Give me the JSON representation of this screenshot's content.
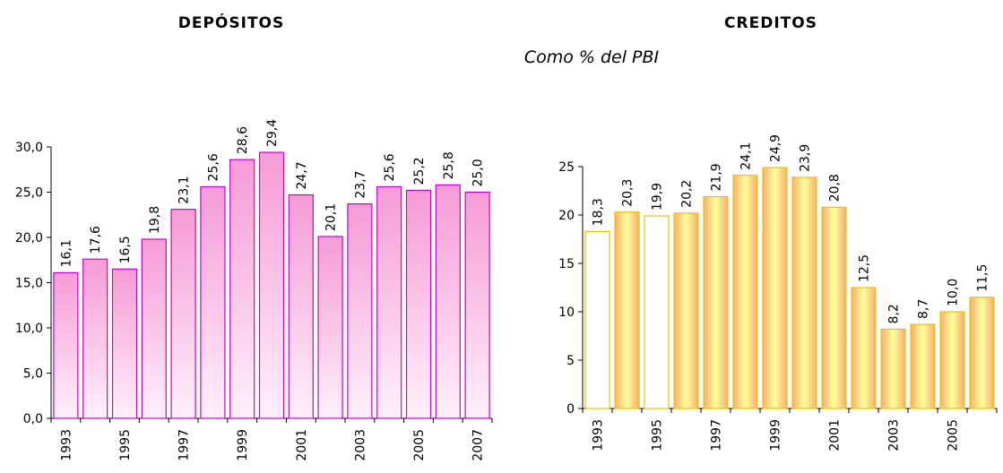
{
  "subtitle": "Como % del PBI",
  "chart_data": [
    {
      "type": "bar",
      "title": "DEPÓSITOS",
      "categories": [
        "1993",
        null,
        "1995",
        null,
        "1997",
        null,
        "1999",
        null,
        "2001",
        null,
        "2003",
        null,
        "2005",
        null,
        "2007"
      ],
      "values": [
        16.1,
        17.6,
        16.5,
        19.8,
        23.1,
        25.6,
        28.6,
        29.4,
        24.7,
        20.1,
        23.7,
        25.6,
        25.2,
        25.8,
        25.0
      ],
      "value_labels": [
        "16,1",
        "17,6",
        "16,5",
        "19,8",
        "23,1",
        "25,6",
        "28,6",
        "29,4",
        "24,7",
        "20,1",
        "23,7",
        "25,6",
        "25,2",
        "25,8",
        "25,0"
      ],
      "color": "#cc00cc",
      "ylim": [
        0,
        30
      ],
      "yticks": [
        {
          "value": 0,
          "label": "0,0"
        },
        {
          "value": 5,
          "label": "5,0"
        },
        {
          "value": 10,
          "label": "10,0"
        },
        {
          "value": 15,
          "label": "15,0"
        },
        {
          "value": 20,
          "label": "20,0"
        },
        {
          "value": 25,
          "label": "25,0"
        },
        {
          "value": 30,
          "label": "30,0"
        }
      ]
    },
    {
      "type": "bar",
      "title": "CREDITOS",
      "categories": [
        "1993",
        null,
        "1995",
        null,
        "1997",
        null,
        "1999",
        null,
        "2001",
        null,
        "2003",
        null,
        "2005",
        null
      ],
      "values": [
        18.3,
        20.3,
        19.9,
        20.2,
        21.9,
        24.1,
        24.9,
        23.9,
        20.8,
        12.5,
        8.2,
        8.7,
        10.0,
        11.5
      ],
      "value_labels": [
        "18,3",
        "20,3",
        "19,9",
        "20,2",
        "21,9",
        "24,1",
        "24,9",
        "23,9",
        "20,8",
        "12,5",
        "8,2",
        "8,7",
        "10,0",
        "11,5"
      ],
      "color": "#f0c000",
      "colors": [
        "#ffffff",
        "#f5a850",
        "#ffffff",
        "#f5a850",
        "#f5a850",
        "#f5a850",
        "#f5a850",
        "#f5a850",
        "#f5a850",
        "#f5a850",
        "#f5a850",
        "#f5a850",
        "#f5a850",
        "#f5a850"
      ],
      "ylim": [
        0,
        25
      ],
      "yticks": [
        0,
        5,
        10,
        15,
        20,
        25
      ]
    }
  ]
}
